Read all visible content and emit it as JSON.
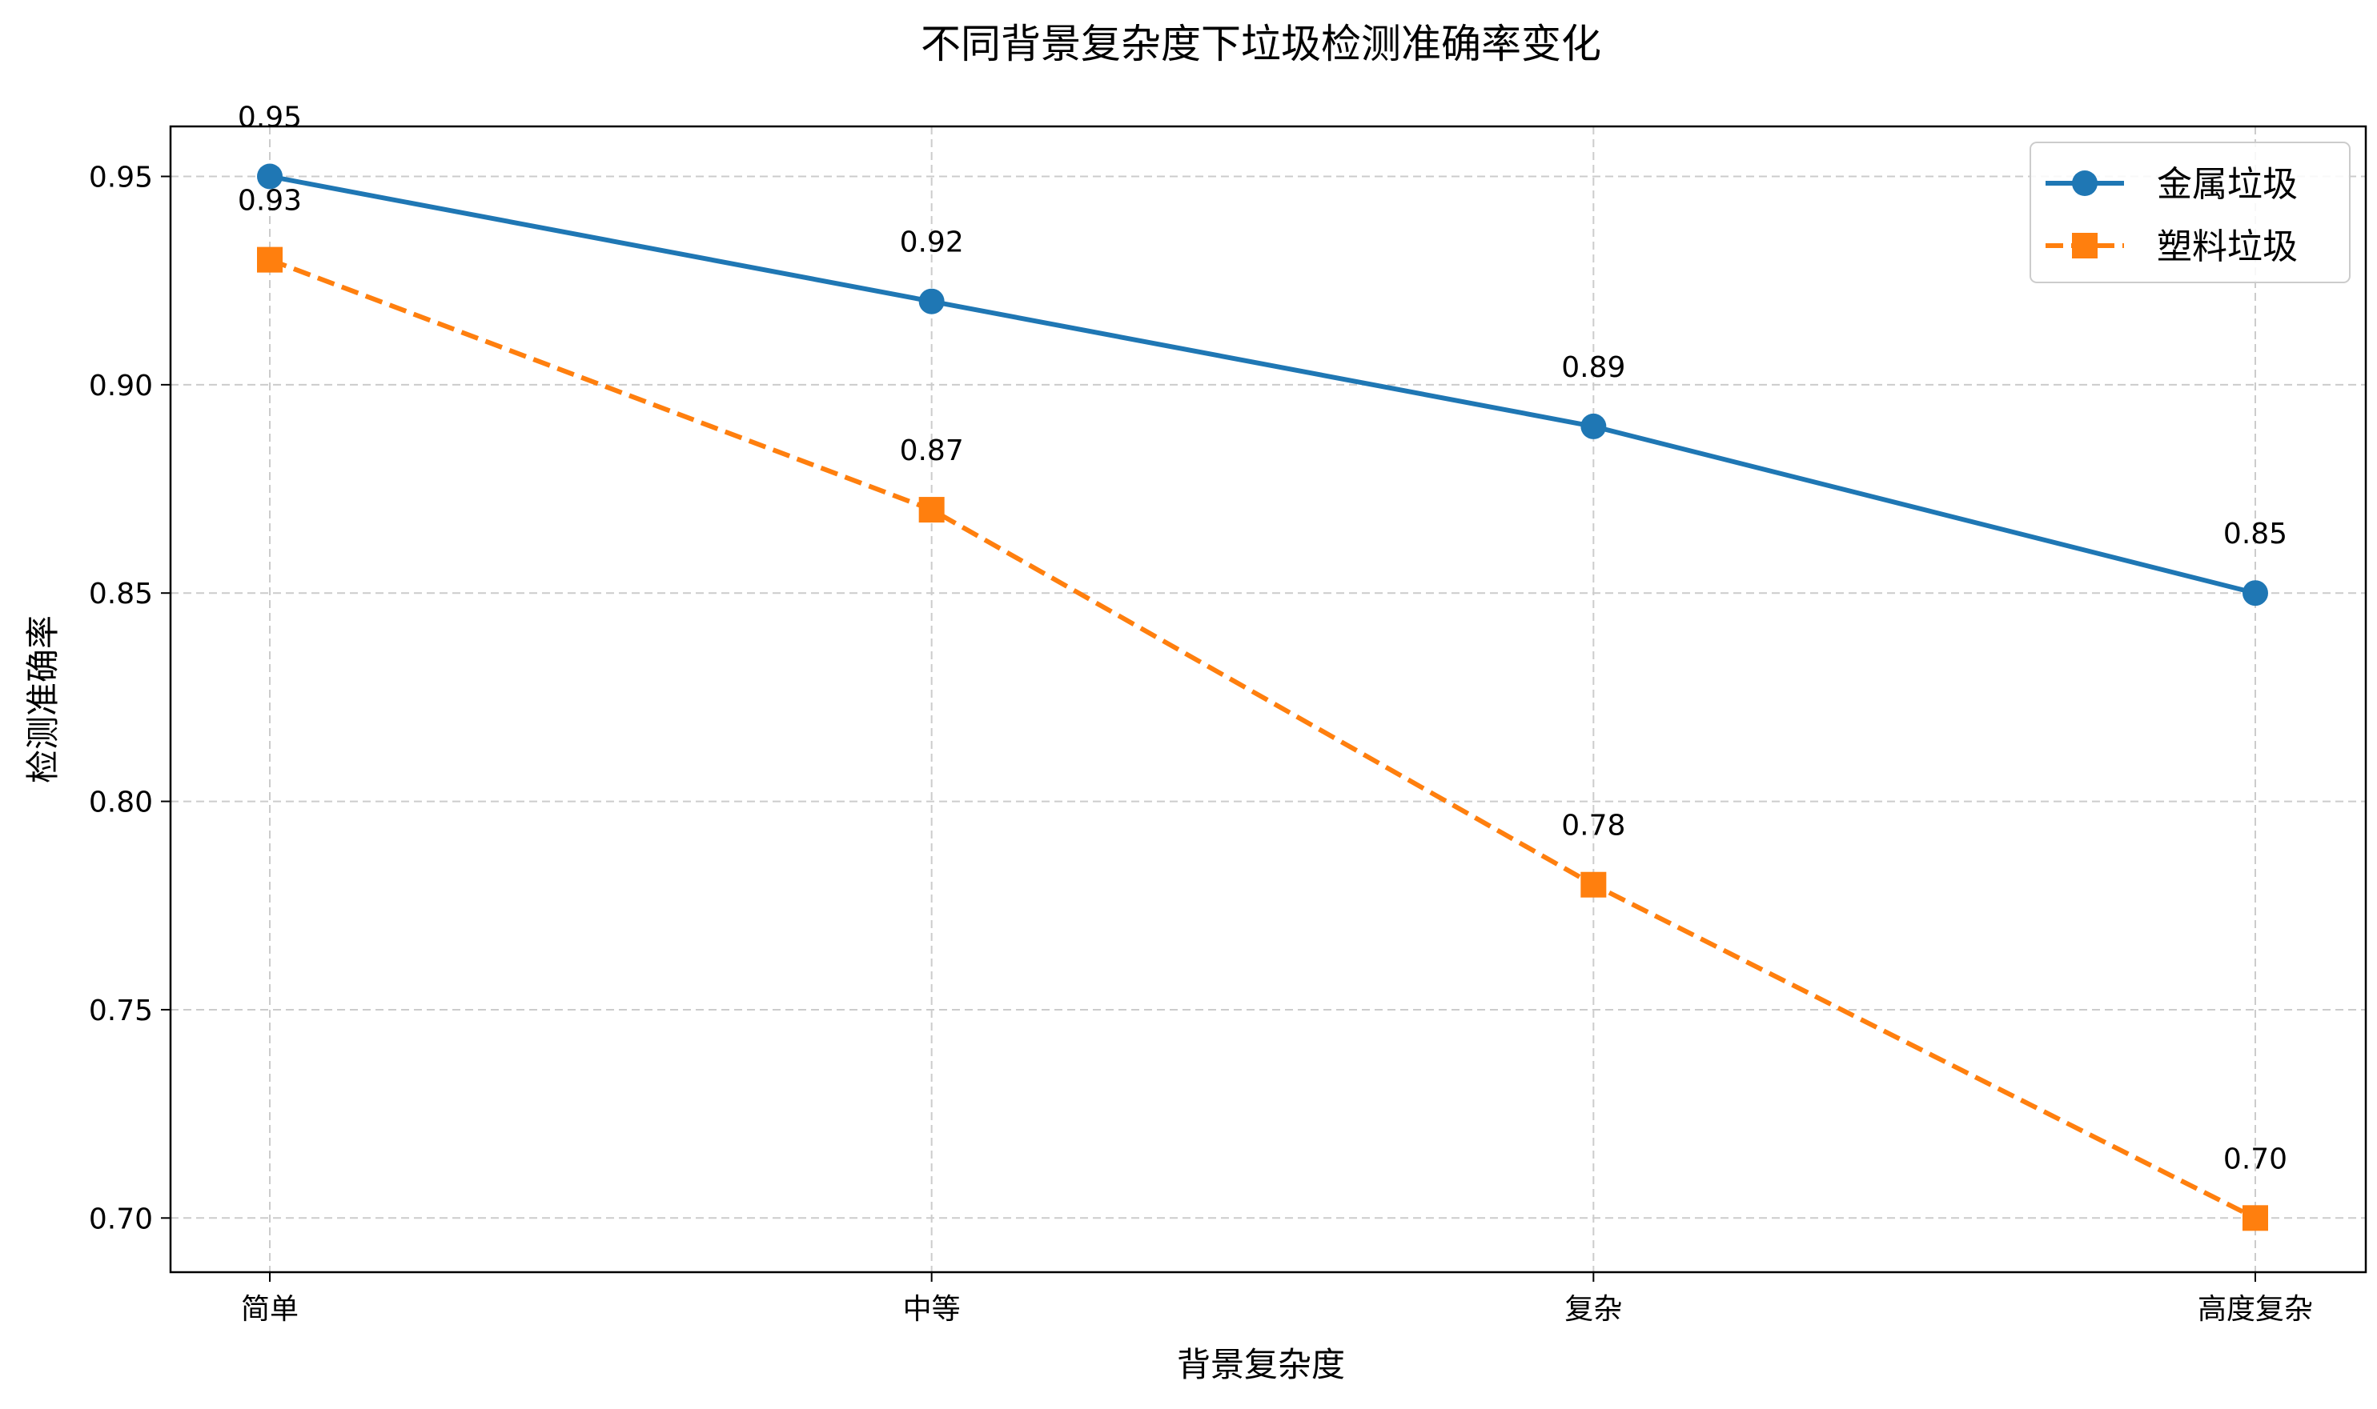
{
  "chart_data": {
    "type": "line",
    "title": "不同背景复杂度下垃圾检测准确率变化",
    "xlabel": "背景复杂度",
    "ylabel": "检测准确率",
    "categories": [
      "简单",
      "中等",
      "复杂",
      "高度复杂"
    ],
    "ylim": [
      0.687,
      0.962
    ],
    "yticks": [
      "0.70",
      "0.75",
      "0.80",
      "0.85",
      "0.90",
      "0.95"
    ],
    "grid": true,
    "legend_position": "top-right",
    "series": [
      {
        "name": "金属垃圾",
        "values": [
          0.95,
          0.92,
          0.89,
          0.85
        ],
        "labels": [
          "0.95",
          "0.92",
          "0.89",
          "0.85"
        ],
        "color": "#1f77b4",
        "marker": "circle",
        "linestyle": "solid"
      },
      {
        "name": "塑料垃圾",
        "values": [
          0.93,
          0.87,
          0.78,
          0.7
        ],
        "labels": [
          "0.93",
          "0.87",
          "0.78",
          "0.70"
        ],
        "color": "#ff7f0e",
        "marker": "square",
        "linestyle": "dashed"
      }
    ]
  }
}
